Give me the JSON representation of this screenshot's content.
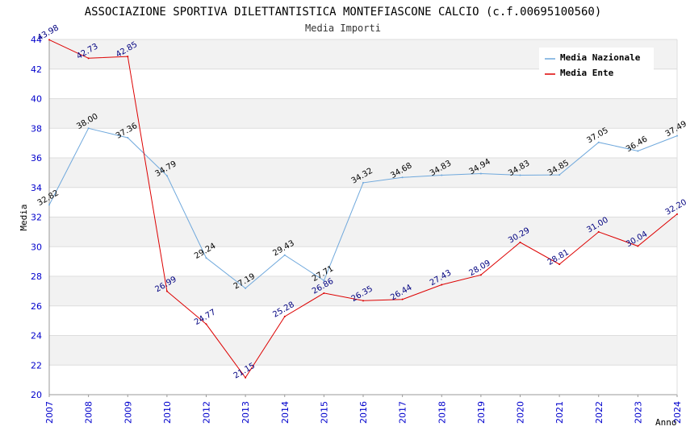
{
  "chart_data": {
    "type": "line",
    "title": "ASSOCIAZIONE SPORTIVA DILETTANTISTICA MONTEFIASCONE CALCIO (c.f.00695100560)",
    "subtitle": "Media Importi",
    "xlabel": "Anno",
    "ylabel": "Media",
    "ylim": [
      20,
      44
    ],
    "yticks": [
      "20",
      "22",
      "24",
      "26",
      "28",
      "30",
      "32",
      "34",
      "36",
      "38",
      "40",
      "42",
      "44"
    ],
    "categories": [
      "2007",
      "2008",
      "2009",
      "2010",
      "2012",
      "2013",
      "2014",
      "2015",
      "2016",
      "2017",
      "2018",
      "2019",
      "2020",
      "2021",
      "2022",
      "2023",
      "2024"
    ],
    "series": [
      {
        "name": "Media Nazionale",
        "color": "#6fa8dc",
        "values": [
          32.82,
          38.0,
          37.36,
          34.79,
          29.24,
          27.19,
          29.43,
          27.71,
          34.32,
          34.68,
          34.83,
          34.94,
          34.83,
          34.85,
          37.05,
          36.46,
          37.49
        ],
        "labels": [
          "32.82",
          "38.00",
          "37.36",
          "34.79",
          "29.24",
          "27.19",
          "29.43",
          "27.71",
          "34.32",
          "34.68",
          "34.83",
          "34.94",
          "34.83",
          "34.85",
          "37.05",
          "36.46",
          "37.49"
        ]
      },
      {
        "name": "Media Ente",
        "color": "#dd0000",
        "values": [
          43.98,
          42.73,
          42.85,
          26.99,
          24.77,
          21.15,
          25.28,
          26.86,
          26.35,
          26.44,
          27.43,
          28.09,
          30.29,
          28.81,
          31.0,
          30.04,
          32.2
        ],
        "labels": [
          "43.98",
          "42.73",
          "42.85",
          "26.99",
          "24.77",
          "21.15",
          "25.28",
          "26.86",
          "26.35",
          "26.44",
          "27.43",
          "28.09",
          "30.29",
          "28.81",
          "31.00",
          "30.04",
          "32.20"
        ]
      }
    ],
    "legend_position": "top-right",
    "grid": true
  }
}
